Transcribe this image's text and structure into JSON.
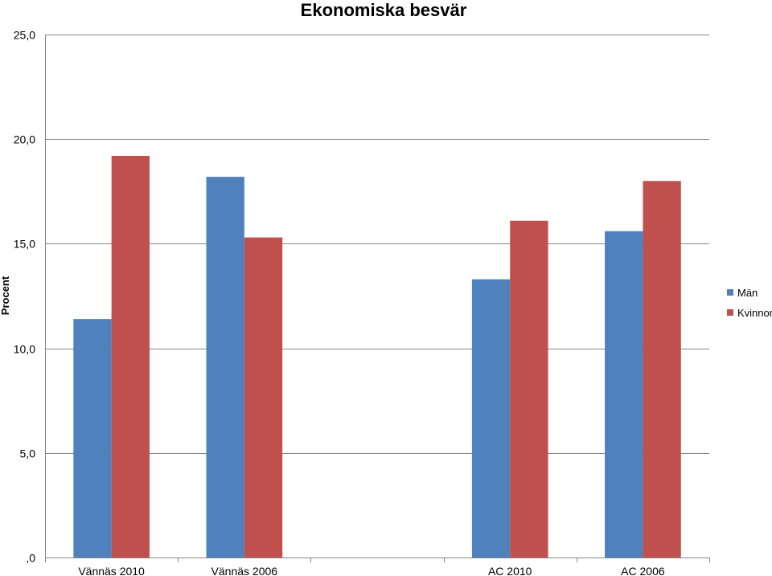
{
  "chart_data": {
    "type": "bar",
    "title": "Ekonomiska besvär",
    "xlabel": "",
    "ylabel": "Procent",
    "categories": [
      "Vännäs 2010",
      "Vännäs 2006",
      "",
      "AC 2010",
      "AC 2006"
    ],
    "series": [
      {
        "name": "Män",
        "color": "#4F81BD",
        "values": [
          11.4,
          18.2,
          null,
          13.3,
          15.6
        ]
      },
      {
        "name": "Kvinnor",
        "color": "#C0504D",
        "values": [
          19.2,
          15.3,
          null,
          16.1,
          18.0
        ]
      }
    ],
    "ylim": [
      0,
      25
    ],
    "yticks": [
      0,
      5,
      10,
      15,
      20,
      25
    ],
    "ytick_labels": [
      ",0",
      "5,0",
      "10,0",
      "15,0",
      "20,0",
      "25,0"
    ],
    "grid": true,
    "legend_position": "right"
  }
}
